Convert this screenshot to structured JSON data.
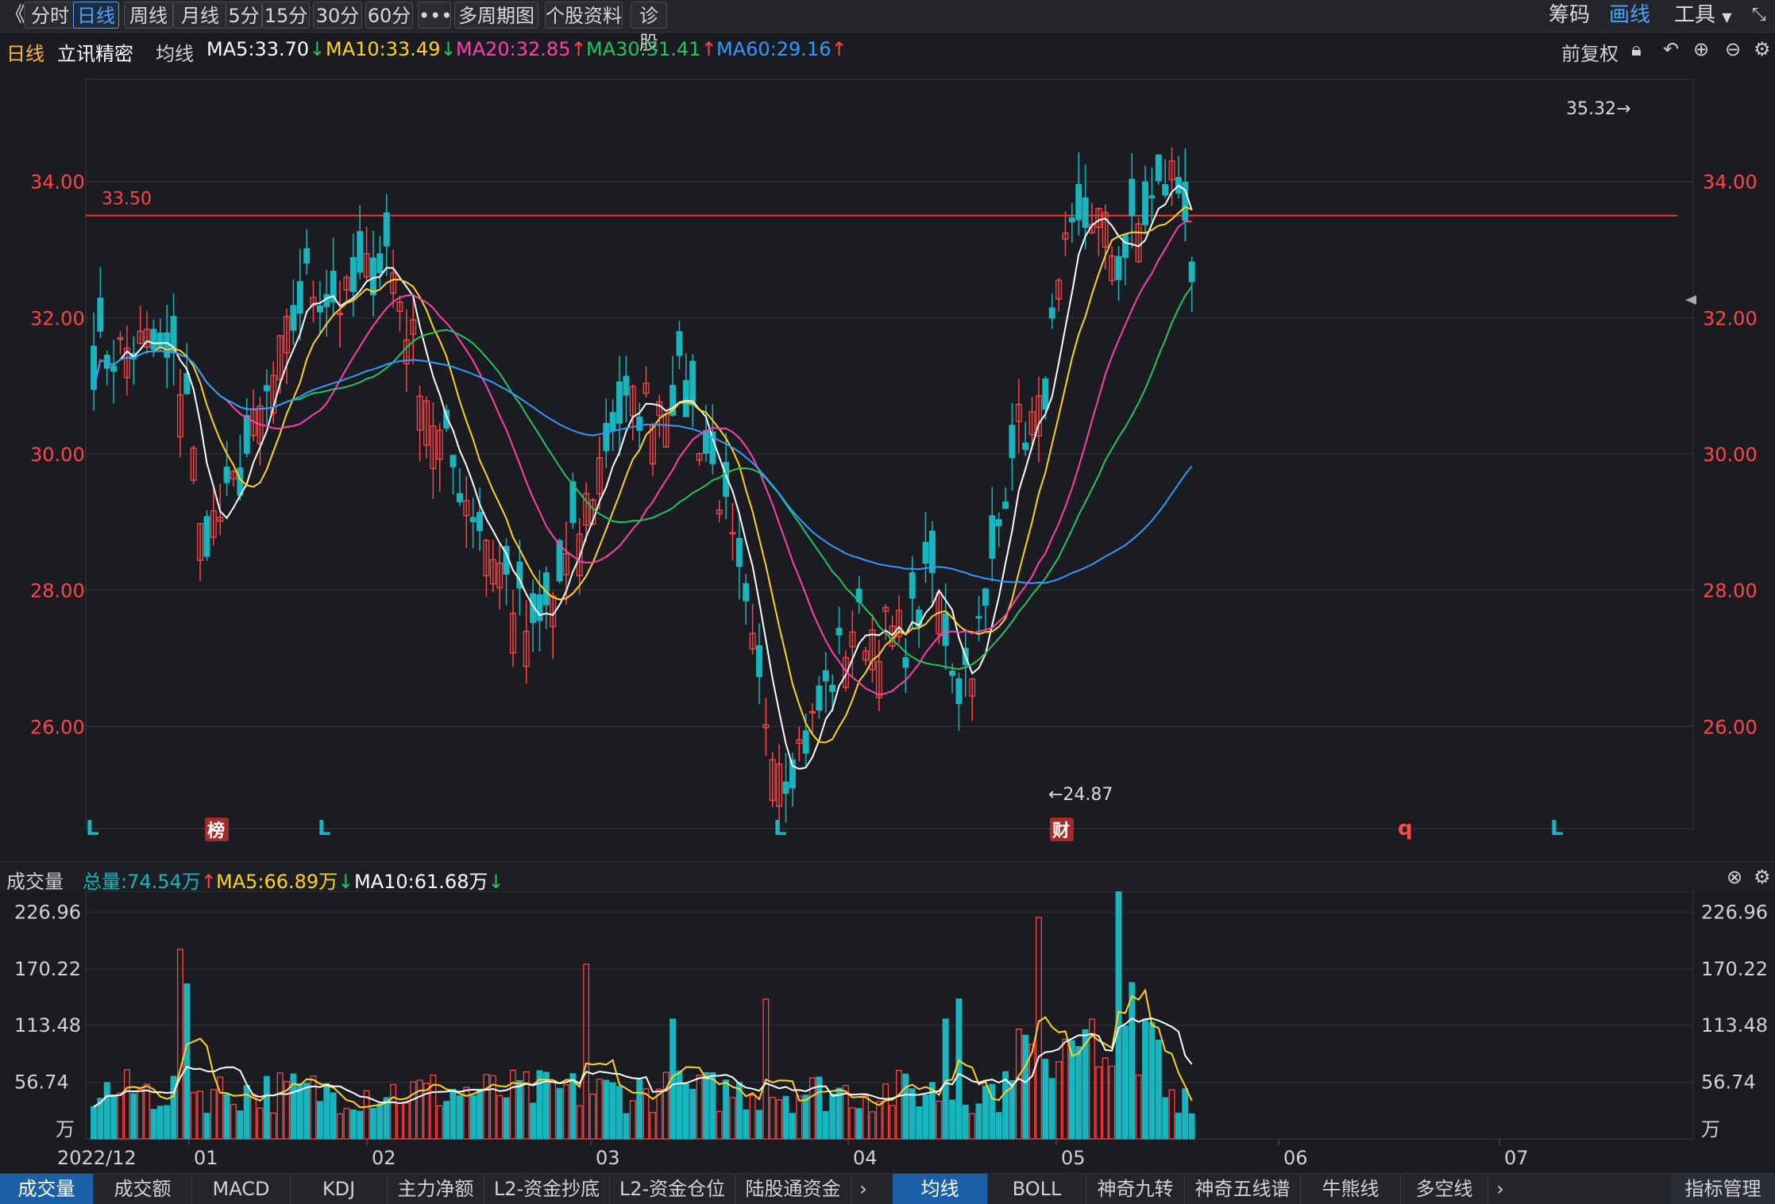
{
  "toolbar": {
    "back": "《",
    "tabs": [
      {
        "label": "分时",
        "active": false
      },
      {
        "label": "日线",
        "active": true
      },
      {
        "label": "周线",
        "active": false
      },
      {
        "label": "月线",
        "active": false
      },
      {
        "label": "5分",
        "active": false
      },
      {
        "label": "15分",
        "active": false
      },
      {
        "label": "30分",
        "active": false
      },
      {
        "label": "60分",
        "active": false
      },
      {
        "label": "•••",
        "active": false
      },
      {
        "label": "多周期图",
        "active": false
      },
      {
        "label": "个股资料",
        "active": false
      },
      {
        "label": "诊股",
        "active": false
      }
    ],
    "right": {
      "chips": "筹码",
      "draw": "画线",
      "tools": "工具"
    }
  },
  "info": {
    "period": "日线",
    "stock": "立讯精密",
    "ma_label": "均线",
    "ma5": "MA5:33.70",
    "ma10": "MA10:33.49",
    "ma20": "MA20:32.85",
    "ma30": "MA30:31.41",
    "ma60": "MA60:29.16",
    "adjust": "前复权"
  },
  "colors": {
    "up": "#ff4545",
    "down": "#19b5bf",
    "ma5": "#ffffff",
    "ma10": "#ffd21f",
    "ma20": "#ff3fb0",
    "ma30": "#22c55e",
    "ma60": "#3399ff"
  },
  "price_axis": {
    "ticks": [
      "34.00",
      "32.00",
      "30.00",
      "28.00",
      "26.00"
    ],
    "hline_label": "33.50",
    "high_label": "35.32→",
    "low_label": "←24.87"
  },
  "markers": [
    "L",
    "榜",
    "L",
    "L",
    "财",
    "q",
    "L"
  ],
  "volume": {
    "title": "成交量",
    "total": "总量:74.54万",
    "ma5": "MA5:66.89万",
    "ma10": "MA10:61.68万",
    "ticks": [
      "226.96",
      "170.22",
      "113.48",
      "56.74",
      "万"
    ]
  },
  "dates": [
    "2022/12",
    "01",
    "02",
    "03",
    "04",
    "05",
    "06",
    "07"
  ],
  "bottom_tabs_left": [
    "成交量",
    "成交额",
    "MACD",
    "KDJ",
    "主力净额",
    "L2-资金抄底",
    "L2-资金仓位",
    "陆股通资金"
  ],
  "bottom_tabs_right": [
    "均线",
    "BOLL",
    "神奇九转",
    "神奇五线谱",
    "牛熊线",
    "多空线"
  ],
  "indicator_manage": "指标管理",
  "chart_data": {
    "type": "candlestick",
    "ylim": [
      24.5,
      35.5
    ],
    "keypoints": [
      [
        0,
        31.4
      ],
      [
        8,
        31.6
      ],
      [
        14,
        31.0
      ],
      [
        16,
        28.8
      ],
      [
        20,
        29.2
      ],
      [
        26,
        30.8
      ],
      [
        32,
        32.5
      ],
      [
        38,
        32.2
      ],
      [
        44,
        33.0
      ],
      [
        52,
        30.2
      ],
      [
        60,
        28.6
      ],
      [
        66,
        27.2
      ],
      [
        72,
        28.6
      ],
      [
        78,
        30.5
      ],
      [
        84,
        30.8
      ],
      [
        88,
        31.0
      ],
      [
        90,
        30.6
      ],
      [
        94,
        29.5
      ],
      [
        100,
        26.5
      ],
      [
        104,
        25.4
      ],
      [
        108,
        26.0
      ],
      [
        114,
        27.5
      ],
      [
        122,
        27.3
      ],
      [
        126,
        28.2
      ],
      [
        130,
        26.6
      ],
      [
        134,
        27.6
      ],
      [
        138,
        30.3
      ],
      [
        142,
        30.5
      ],
      [
        146,
        32.8
      ],
      [
        150,
        33.6
      ],
      [
        154,
        32.8
      ],
      [
        158,
        33.5
      ],
      [
        162,
        34.1
      ],
      [
        164,
        33.7
      ],
      [
        165,
        32.7
      ]
    ],
    "ma_offsets": {
      "ma20": [
        [
          0,
          0.0
        ],
        [
          40,
          -0.6
        ],
        [
          90,
          0.0
        ],
        [
          130,
          -1.0
        ],
        [
          165,
          0.0
        ]
      ]
    }
  }
}
